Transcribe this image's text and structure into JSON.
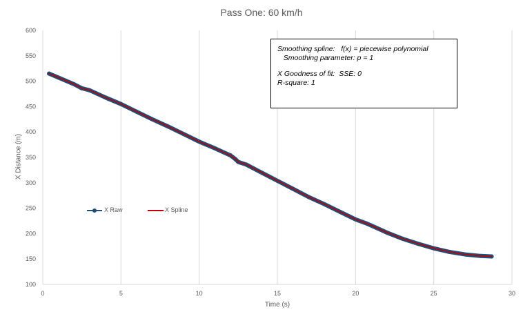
{
  "chart_data": {
    "type": "line",
    "title": "Pass One: 60 km/h",
    "xlabel": "Time (s)",
    "ylabel": "X Distance (m)",
    "xlim": [
      0,
      30
    ],
    "ylim": [
      100,
      600
    ],
    "x_ticks": [
      0,
      5,
      10,
      15,
      20,
      25,
      30
    ],
    "y_ticks": [
      100,
      150,
      200,
      250,
      300,
      350,
      400,
      450,
      500,
      550,
      600
    ],
    "grid": "vertical",
    "legend_position": "left-center",
    "series": [
      {
        "name": "X Raw",
        "color": "#1f4e79",
        "marker": "circle",
        "x": [
          0.4,
          1.0,
          2.0,
          2.5,
          3.0,
          4.0,
          5.0,
          6.0,
          7.0,
          8.0,
          9.0,
          9.8,
          10.0,
          11.0,
          12.0,
          12.3,
          12.5,
          13.0,
          14.0,
          15.0,
          16.0,
          17.0,
          18.0,
          19.0,
          20.0,
          20.7,
          21.0,
          22.0,
          23.0,
          24.0,
          25.0,
          26.0,
          27.0,
          28.0,
          28.7
        ],
        "y": [
          515,
          507,
          494,
          486,
          482,
          468,
          455,
          440,
          425,
          411,
          396,
          384,
          381,
          368,
          354,
          347,
          341,
          336,
          320,
          304,
          288,
          272,
          258,
          243,
          228,
          220,
          216,
          202,
          190,
          180,
          171,
          164,
          159,
          156,
          155
        ]
      },
      {
        "name": "X Spline",
        "color": "#c00000",
        "x": [
          0.4,
          1.0,
          2.0,
          2.5,
          3.0,
          4.0,
          5.0,
          6.0,
          7.0,
          8.0,
          9.0,
          9.8,
          10.0,
          11.0,
          12.0,
          12.3,
          12.5,
          13.0,
          14.0,
          15.0,
          16.0,
          17.0,
          18.0,
          19.0,
          20.0,
          20.7,
          21.0,
          22.0,
          23.0,
          24.0,
          25.0,
          26.0,
          27.0,
          28.0,
          28.7
        ],
        "y": [
          515,
          507,
          494,
          486,
          482,
          468,
          455,
          440,
          425,
          411,
          396,
          384,
          381,
          368,
          354,
          347,
          341,
          336,
          320,
          304,
          288,
          272,
          258,
          243,
          228,
          220,
          216,
          202,
          190,
          180,
          171,
          164,
          159,
          156,
          155
        ]
      }
    ],
    "annotation": {
      "line1": "Smoothing spline:   f(x) = piecewise polynomial",
      "line2": "   Smoothing parameter: p = 1",
      "line3": "X Goodness of fit:  SSE: 0",
      "line4": "R-square: 1"
    }
  },
  "colors": {
    "grid": "#d9d9d9",
    "axis_text": "#595959"
  }
}
